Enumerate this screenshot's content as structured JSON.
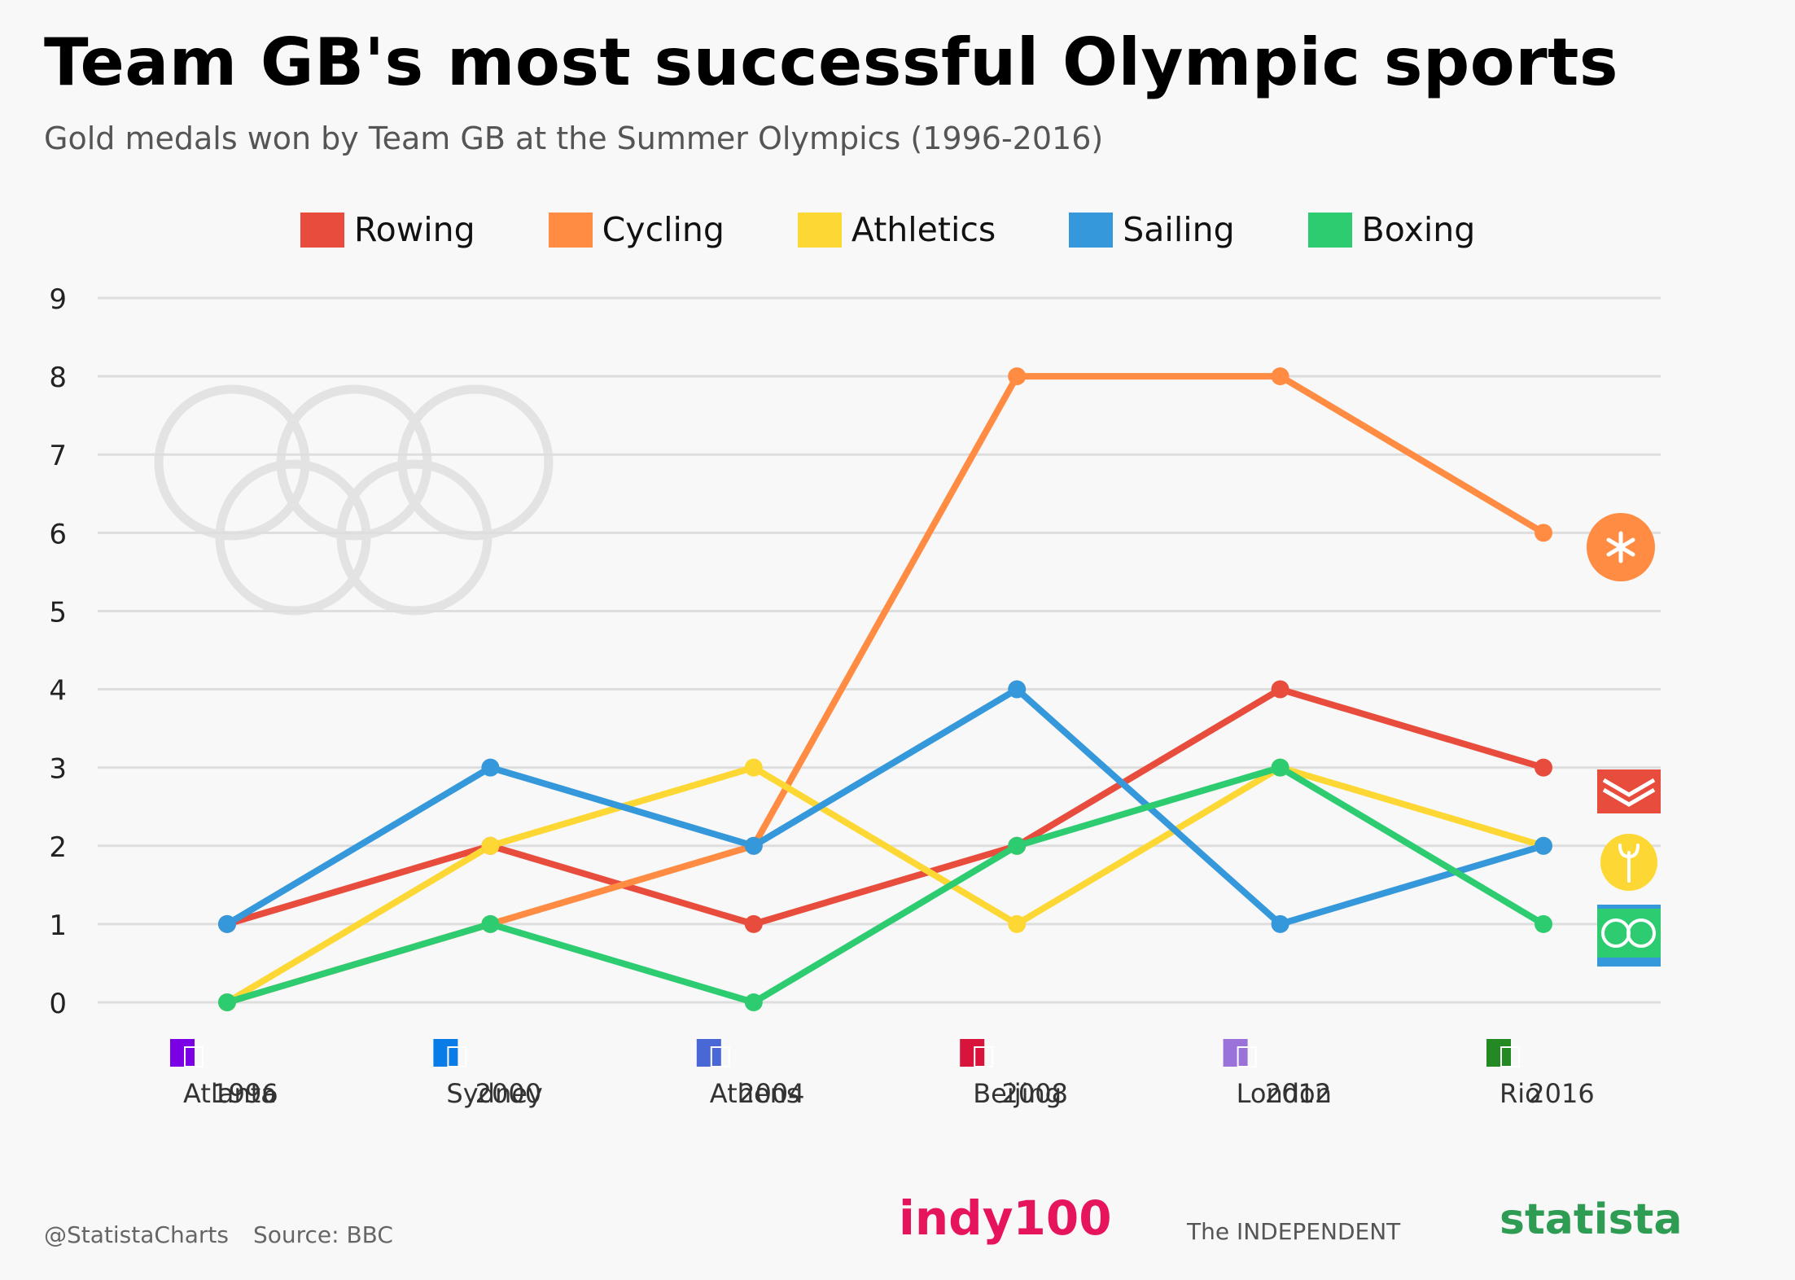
{
  "title": "Team GB's most successful Olympic sports",
  "subtitle": "Gold medals won by Team GB at the Summer Olympics (1996-2016)",
  "footer": {
    "handle": "@StatistaCharts",
    "source": "Source: BBC"
  },
  "logos": {
    "indy": "indy100",
    "independent": "The INDEPENDENT",
    "statista": "statista"
  },
  "chart_data": {
    "type": "line",
    "title": "Team GB's most successful Olympic sports",
    "subtitle": "Gold medals won by Team GB at the Summer Olympics (1996-2016)",
    "x": [
      "Atlanta 1996",
      "Sydney 2000",
      "Athens 2004",
      "Beijing 2008",
      "London 2012",
      "Rio 2016"
    ],
    "x_cities": [
      "Atlanta",
      "Sydney",
      "Athens",
      "Beijing",
      "London",
      "Rio"
    ],
    "x_years": [
      "1996",
      "2000",
      "2004",
      "2008",
      "2012",
      "2016"
    ],
    "host_colors": [
      "#7b00e6",
      "#0a7ce8",
      "#4a67d6",
      "#d8143c",
      "#9b72d9",
      "#238a23"
    ],
    "ylim": [
      0,
      9
    ],
    "yticks": [
      "0",
      "1",
      "2",
      "3",
      "4",
      "5",
      "6",
      "7",
      "8",
      "9"
    ],
    "grid": true,
    "legend_position": "top",
    "xlabel": "",
    "ylabel": "",
    "series": [
      {
        "name": "Rowing",
        "color": "#e74c3c",
        "icon": "rowing-icon",
        "values": [
          1,
          2,
          1,
          2,
          4,
          3
        ]
      },
      {
        "name": "Cycling",
        "color": "#ff8c42",
        "icon": "cycling-icon",
        "values": [
          0,
          1,
          2,
          8,
          8,
          6
        ]
      },
      {
        "name": "Athletics",
        "color": "#fdd835",
        "icon": "athletics-icon",
        "values": [
          0,
          2,
          3,
          1,
          3,
          2
        ]
      },
      {
        "name": "Sailing",
        "color": "#3498db",
        "icon": "sailing-icon",
        "values": [
          1,
          3,
          2,
          4,
          1,
          2
        ]
      },
      {
        "name": "Boxing",
        "color": "#2ecc71",
        "icon": "boxing-icon",
        "values": [
          0,
          1,
          0,
          2,
          3,
          1
        ]
      }
    ]
  }
}
